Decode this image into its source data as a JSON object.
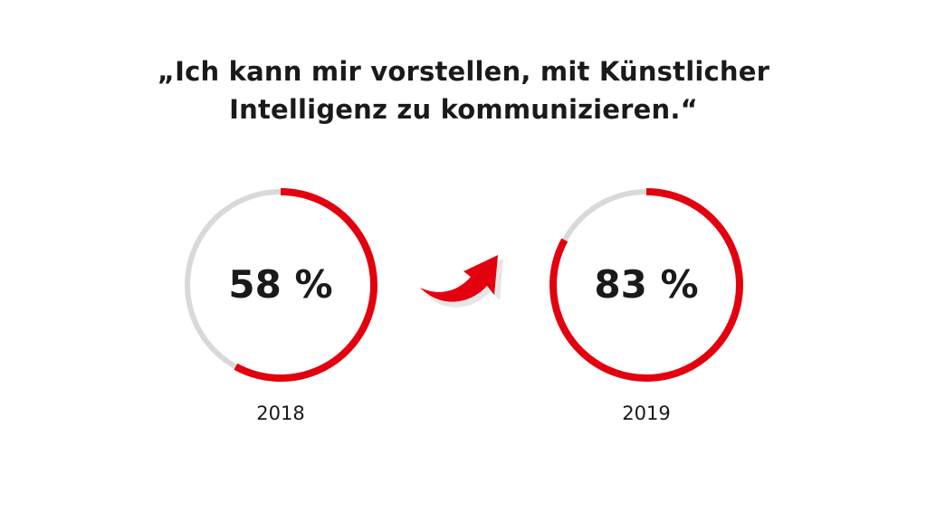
{
  "title": {
    "line1": "„Ich kann mir vorstellen, mit Künstlicher",
    "line2": "Intelligenz zu kommunizieren.“"
  },
  "colors": {
    "accent": "#e3000f",
    "track": "#d9d9d9",
    "text": "#1a1a1a"
  },
  "icons": {
    "arrow": "curved-up-right-arrow-icon"
  },
  "chart_data": [
    {
      "type": "pie",
      "categories": [
        "2018"
      ],
      "values": [
        58
      ],
      "unit": "%",
      "value_label": "58 %",
      "xlabel": "2018"
    },
    {
      "type": "pie",
      "categories": [
        "2019"
      ],
      "values": [
        83
      ],
      "unit": "%",
      "value_label": "83 %",
      "xlabel": "2019"
    }
  ]
}
